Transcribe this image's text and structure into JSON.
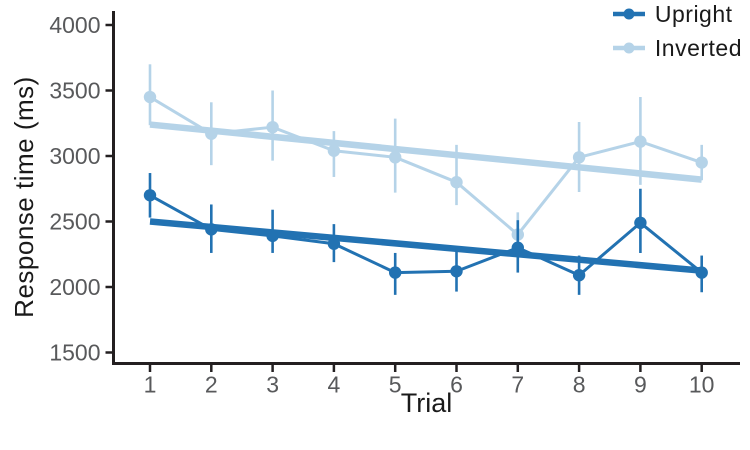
{
  "figure": {
    "background": "#ffffff",
    "axis_color": "#231f20",
    "tick_label_color": "#58595b",
    "title_color": "#1a1a1a",
    "upright_color": "#2272b2",
    "inverted_color": "#b5d3e8"
  },
  "legend": {
    "items": [
      {
        "label": "Upright",
        "color": "#2272b2"
      },
      {
        "label": "Inverted",
        "color": "#b5d3e8"
      }
    ]
  },
  "chart_data": {
    "type": "line",
    "title": "",
    "xlabel": "Trial",
    "ylabel": "Response time (ms)",
    "x": [
      1,
      2,
      3,
      4,
      5,
      6,
      7,
      8,
      9,
      10
    ],
    "xticks": [
      1,
      2,
      3,
      4,
      5,
      6,
      7,
      8,
      9,
      10
    ],
    "yticks": [
      1500,
      2000,
      2500,
      3000,
      3500,
      4000
    ],
    "ylim": [
      1500,
      4000
    ],
    "xlim": [
      0.4,
      10.6
    ],
    "grid": false,
    "legend_position": "top-right",
    "series": [
      {
        "name": "Inverted",
        "color": "#b5d3e8",
        "values": [
          3450,
          3170,
          3220,
          3040,
          2990,
          2800,
          2400,
          2990,
          3110,
          2950
        ],
        "error_low": [
          3235,
          2930,
          2965,
          2840,
          2720,
          2625,
          2215,
          2725,
          2780,
          2815
        ],
        "error_high": [
          3700,
          3410,
          3500,
          3190,
          3285,
          3085,
          2570,
          3260,
          3450,
          3085
        ],
        "trend": {
          "x": [
            1,
            10
          ],
          "y": [
            3240,
            2820
          ]
        }
      },
      {
        "name": "Upright",
        "color": "#2272b2",
        "values": [
          2700,
          2440,
          2390,
          2330,
          2110,
          2120,
          2300,
          2090,
          2490,
          2110
        ],
        "error_low": [
          2530,
          2260,
          2260,
          2190,
          1940,
          1965,
          2110,
          1940,
          2260,
          1960
        ],
        "error_high": [
          2870,
          2630,
          2590,
          2480,
          2260,
          2295,
          2510,
          2240,
          2750,
          2240
        ],
        "trend": {
          "x": [
            1,
            10
          ],
          "y": [
            2500,
            2125
          ]
        }
      }
    ]
  }
}
